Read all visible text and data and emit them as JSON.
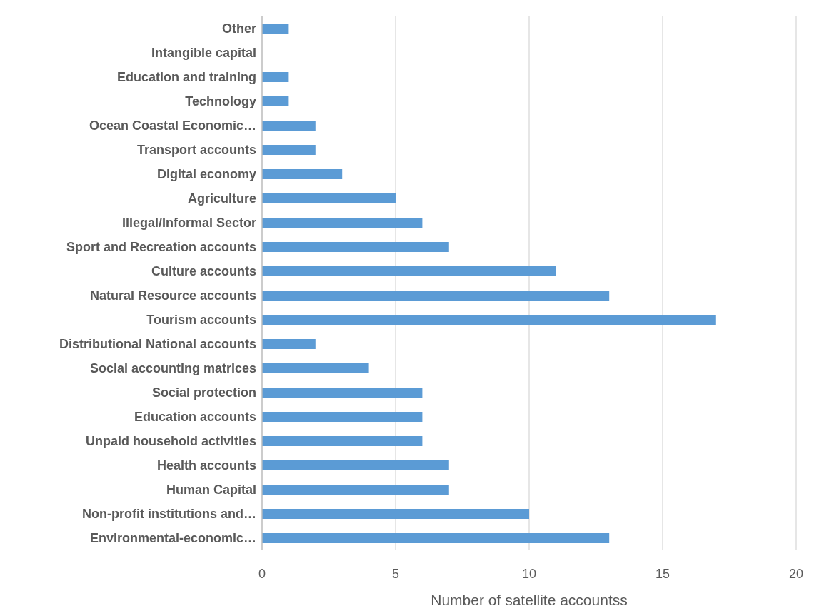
{
  "chart_data": {
    "type": "bar",
    "orientation": "horizontal",
    "xlabel": "Number of satellite accountss",
    "categories": [
      "Other",
      "Intangible capital",
      "Education and training",
      "Technology",
      "Ocean Coastal Economic…",
      "Transport accounts",
      "Digital economy",
      "Agriculture",
      "Illegal/Informal Sector",
      "Sport and Recreation accounts",
      "Culture accounts",
      "Natural Resource accounts",
      "Tourism accounts",
      "Distributional National accounts",
      "Social accounting matrices",
      "Social protection",
      "Education accounts",
      "Unpaid household activities",
      "Health accounts",
      "Human Capital",
      "Non-profit institutions and…",
      "Environmental-economic…"
    ],
    "values": [
      1,
      0,
      1,
      1,
      2,
      2,
      3,
      5,
      6,
      7,
      11,
      13,
      17,
      2,
      4,
      6,
      6,
      6,
      7,
      7,
      10,
      13
    ],
    "color": "#5b9bd5",
    "xlim": [
      0,
      20
    ],
    "xticks": [
      0,
      5,
      10,
      15,
      20
    ],
    "grid": "x"
  }
}
